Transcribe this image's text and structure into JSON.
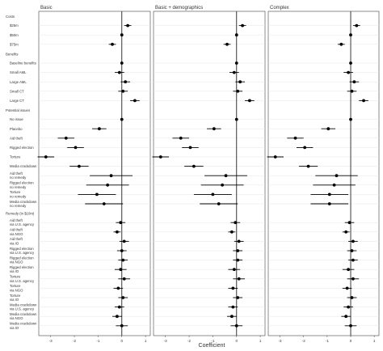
{
  "chart_data": {
    "type": "scatter",
    "subtype": "coefficient-plot",
    "xlabel": "Coefficient",
    "xticks": [
      -3,
      -2,
      -1,
      0,
      1
    ],
    "xlim": [
      -3.5,
      1.2
    ],
    "zero_line": true,
    "grid": true,
    "point_color": "#000000",
    "panels": [
      "Basic",
      "Basic + demographics",
      "Complex"
    ],
    "rows": [
      {
        "kind": "header",
        "label": "Costs"
      },
      {
        "kind": "term",
        "label": "$25m",
        "values": [
          0.25,
          0.25,
          0.25
        ],
        "ci": [
          0.15,
          0.15,
          0.15
        ]
      },
      {
        "kind": "term",
        "label": "$50m",
        "values": [
          0.0,
          0.0,
          0.0
        ]
      },
      {
        "kind": "term",
        "label": "$75m",
        "values": [
          -0.4,
          -0.4,
          -0.4
        ],
        "ci": [
          0.15,
          0.15,
          0.15
        ]
      },
      {
        "kind": "header",
        "label": "Benefits"
      },
      {
        "kind": "term",
        "label": "Baseline benefits",
        "values": [
          0.0,
          0.0,
          0.0
        ]
      },
      {
        "kind": "term",
        "label": "Small AML",
        "values": [
          -0.1,
          -0.1,
          -0.1
        ],
        "ci": [
          0.2,
          0.2,
          0.2
        ]
      },
      {
        "kind": "term",
        "label": "Large AML",
        "values": [
          0.15,
          0.15,
          0.15
        ],
        "ci": [
          0.2,
          0.2,
          0.2
        ]
      },
      {
        "kind": "term",
        "label": "Small CT",
        "values": [
          0.05,
          0.05,
          0.05
        ],
        "ci": [
          0.2,
          0.2,
          0.2
        ]
      },
      {
        "kind": "term",
        "label": "Large CT",
        "values": [
          0.55,
          0.55,
          0.55
        ],
        "ci": [
          0.2,
          0.2,
          0.2
        ]
      },
      {
        "kind": "header",
        "label": "Potential issues"
      },
      {
        "kind": "term",
        "label": "No issue",
        "values": [
          0.0,
          0.0,
          0.0
        ]
      },
      {
        "kind": "term",
        "label": "Placebo",
        "values": [
          -0.95,
          -0.95,
          -0.95
        ],
        "ci": [
          0.3,
          0.3,
          0.3
        ]
      },
      {
        "kind": "term",
        "label": "Aid theft",
        "values": [
          -2.35,
          -2.35,
          -2.35
        ],
        "ci": [
          0.35,
          0.35,
          0.35
        ]
      },
      {
        "kind": "term",
        "label": "Rigged election",
        "values": [
          -1.95,
          -1.95,
          -1.95
        ],
        "ci": [
          0.35,
          0.35,
          0.35
        ]
      },
      {
        "kind": "term",
        "label": "Torture",
        "values": [
          -3.2,
          -3.2,
          -3.2
        ],
        "ci": [
          0.35,
          0.35,
          0.35
        ]
      },
      {
        "kind": "term",
        "label": "Media crackdown",
        "values": [
          -1.8,
          -1.8,
          -1.8
        ],
        "ci": [
          0.4,
          0.4,
          0.4
        ]
      },
      {
        "kind": "term",
        "label": [
          "Aid theft",
          "no remedy"
        ],
        "values": [
          -0.45,
          -0.45,
          -0.6
        ],
        "ci": [
          0.9,
          0.9,
          0.9
        ]
      },
      {
        "kind": "term",
        "label": [
          "Rigged election",
          "no remedy"
        ],
        "values": [
          -0.6,
          -0.6,
          -0.7
        ],
        "ci": [
          0.9,
          0.9,
          0.9
        ]
      },
      {
        "kind": "term",
        "label": [
          "Torture",
          "no remedy"
        ],
        "values": [
          -1.05,
          -1.0,
          -0.9
        ],
        "ci": [
          0.8,
          0.8,
          0.8
        ]
      },
      {
        "kind": "term",
        "label": [
          "Media crackdown",
          "no remedy"
        ],
        "values": [
          -0.75,
          -0.75,
          -0.9
        ],
        "ci": [
          0.8,
          0.8,
          0.8
        ]
      },
      {
        "kind": "header",
        "label": "Remedy (in $10m)"
      },
      {
        "kind": "term",
        "label": [
          "Aid theft",
          "via U.S. agency"
        ],
        "values": [
          -0.05,
          -0.05,
          -0.05
        ],
        "ci": [
          0.2,
          0.2,
          0.2
        ]
      },
      {
        "kind": "term",
        "label": [
          "Aid theft",
          "via NGO"
        ],
        "values": [
          -0.2,
          -0.2,
          -0.2
        ],
        "ci": [
          0.15,
          0.15,
          0.15
        ]
      },
      {
        "kind": "term",
        "label": [
          "Aid theft",
          "via IO"
        ],
        "values": [
          0.1,
          0.1,
          0.1
        ],
        "ci": [
          0.2,
          0.2,
          0.2
        ]
      },
      {
        "kind": "term",
        "label": [
          "Rigged election",
          "via U.S. agency"
        ],
        "values": [
          0.0,
          0.05,
          0.05
        ],
        "ci": [
          0.2,
          0.2,
          0.2
        ]
      },
      {
        "kind": "term",
        "label": [
          "Rigged election",
          "via NGO"
        ],
        "values": [
          0.05,
          0.05,
          0.1
        ],
        "ci": [
          0.2,
          0.2,
          0.2
        ]
      },
      {
        "kind": "term",
        "label": [
          "Rigged election",
          "via IO"
        ],
        "values": [
          -0.05,
          -0.1,
          -0.1
        ],
        "ci": [
          0.25,
          0.25,
          0.25
        ]
      },
      {
        "kind": "term",
        "label": [
          "Torture",
          "via U.S. agency"
        ],
        "values": [
          0.1,
          0.1,
          0.1
        ],
        "ci": [
          0.25,
          0.25,
          0.25
        ]
      },
      {
        "kind": "term",
        "label": [
          "Torture",
          "via NGO"
        ],
        "values": [
          -0.15,
          -0.15,
          -0.15
        ],
        "ci": [
          0.2,
          0.2,
          0.2
        ]
      },
      {
        "kind": "term",
        "label": [
          "Torture",
          "via IO"
        ],
        "values": [
          0.05,
          0.05,
          0.05
        ],
        "ci": [
          0.2,
          0.2,
          0.2
        ]
      },
      {
        "kind": "term",
        "label": [
          "Media crackdown",
          "via U.S. agency"
        ],
        "values": [
          -0.1,
          -0.15,
          -0.1
        ],
        "ci": [
          0.2,
          0.2,
          0.2
        ]
      },
      {
        "kind": "term",
        "label": [
          "Media crackdown",
          "via NGO"
        ],
        "values": [
          -0.2,
          -0.2,
          -0.2
        ],
        "ci": [
          0.2,
          0.2,
          0.2
        ]
      },
      {
        "kind": "term",
        "label": [
          "Media crackdown",
          "via IO"
        ],
        "values": [
          0.0,
          0.0,
          0.0
        ],
        "ci": [
          0.25,
          0.25,
          0.25
        ]
      }
    ]
  }
}
